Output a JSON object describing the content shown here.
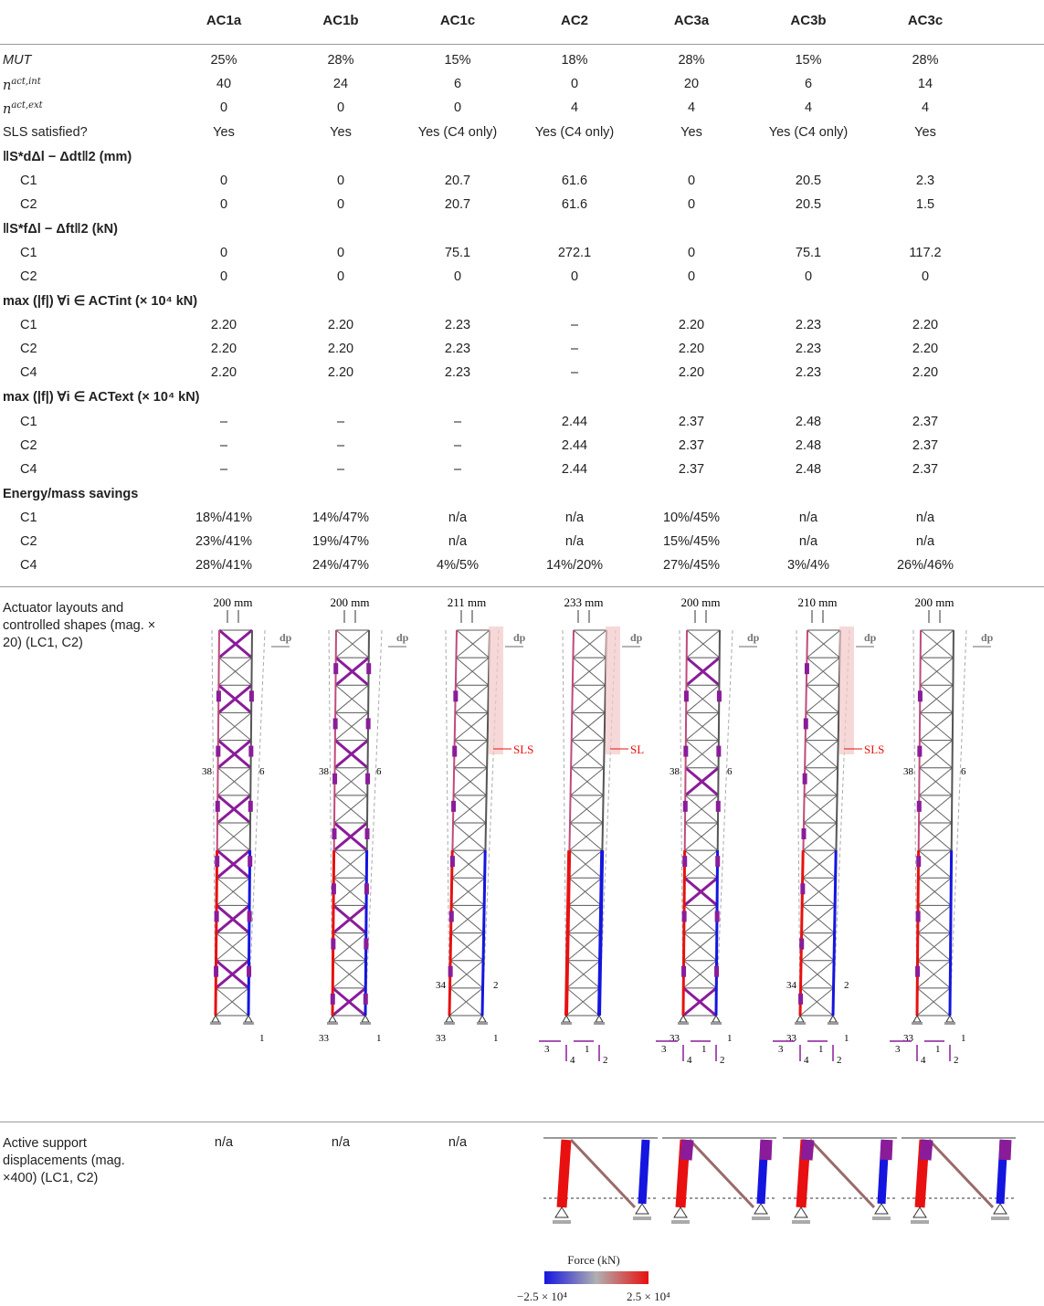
{
  "columns": [
    "AC1a",
    "AC1b",
    "AC1c",
    "AC2",
    "AC3a",
    "AC3b",
    "AC3c"
  ],
  "rows": {
    "mut": {
      "label": "MUT",
      "values": [
        "25%",
        "28%",
        "15%",
        "18%",
        "28%",
        "15%",
        "28%"
      ]
    },
    "nact_int": {
      "label_base": "n",
      "label_sup": "act,int",
      "values": [
        "40",
        "24",
        "6",
        "0",
        "20",
        "6",
        "14"
      ]
    },
    "nact_ext": {
      "label_base": "n",
      "label_sup": "act,ext",
      "values": [
        "0",
        "0",
        "0",
        "4",
        "4",
        "4",
        "4"
      ]
    },
    "sls": {
      "label": "SLS satisfied?",
      "values": [
        "Yes",
        "Yes",
        "Yes (C4 only)",
        "Yes (C4 only)",
        "Yes",
        "Yes (C4 only)",
        "Yes"
      ]
    }
  },
  "sections": {
    "disp_norm": {
      "label": "‖S*dΔl − Δdt‖2 (mm)",
      "rows": [
        {
          "label": "C1",
          "values": [
            "0",
            "0",
            "20.7",
            "61.6",
            "0",
            "20.5",
            "2.3"
          ]
        },
        {
          "label": "C2",
          "values": [
            "0",
            "0",
            "20.7",
            "61.6",
            "0",
            "20.5",
            "1.5"
          ]
        }
      ]
    },
    "force_norm": {
      "label": "‖S*fΔl − Δft‖2 (kN)",
      "rows": [
        {
          "label": "C1",
          "values": [
            "0",
            "0",
            "75.1",
            "272.1",
            "0",
            "75.1",
            "117.2"
          ]
        },
        {
          "label": "C2",
          "values": [
            "0",
            "0",
            "0",
            "0",
            "0",
            "0",
            "0"
          ]
        }
      ]
    },
    "max_int": {
      "label": "max (|f|) ∀i ∈ ACTint (× 10⁴ kN)",
      "rows": [
        {
          "label": "C1",
          "values": [
            "2.20",
            "2.20",
            "2.23",
            "–",
            "2.20",
            "2.23",
            "2.20"
          ]
        },
        {
          "label": "C2",
          "values": [
            "2.20",
            "2.20",
            "2.23",
            "–",
            "2.20",
            "2.23",
            "2.20"
          ]
        },
        {
          "label": "C4",
          "values": [
            "2.20",
            "2.20",
            "2.23",
            "–",
            "2.20",
            "2.23",
            "2.20"
          ]
        }
      ]
    },
    "max_ext": {
      "label": "max (|f|) ∀i ∈ ACText (× 10⁴ kN)",
      "rows": [
        {
          "label": "C1",
          "values": [
            "–",
            "–",
            "–",
            "2.44",
            "2.37",
            "2.48",
            "2.37"
          ]
        },
        {
          "label": "C2",
          "values": [
            "–",
            "–",
            "–",
            "2.44",
            "2.37",
            "2.48",
            "2.37"
          ]
        },
        {
          "label": "C4",
          "values": [
            "–",
            "–",
            "–",
            "2.44",
            "2.37",
            "2.48",
            "2.37"
          ]
        }
      ]
    },
    "energy": {
      "label": "Energy/mass savings",
      "rows": [
        {
          "label": "C1",
          "values": [
            "18%/41%",
            "14%/47%",
            "n/a",
            "n/a",
            "10%/45%",
            "n/a",
            "n/a"
          ]
        },
        {
          "label": "C2",
          "values": [
            "23%/41%",
            "19%/47%",
            "n/a",
            "n/a",
            "15%/45%",
            "n/a",
            "n/a"
          ]
        },
        {
          "label": "C4",
          "values": [
            "28%/41%",
            "24%/47%",
            "4%/5%",
            "14%/20%",
            "27%/45%",
            "3%/4%",
            "26%/46%"
          ]
        }
      ]
    }
  },
  "layouts": {
    "label_line1": "Actuator layouts and",
    "label_line2": "controlled shapes (mag. ×",
    "label_line3": "20) (LC1, C2)",
    "widths": [
      "200 mm",
      "200 mm",
      "211 mm",
      "233 mm",
      "200 mm",
      "210 mm",
      "200 mm"
    ],
    "dp_label": "dp",
    "sls_labels": [
      "",
      "",
      "SLS",
      "SL",
      "",
      "SLS",
      ""
    ],
    "top_nums": [
      "38",
      "38",
      "",
      "",
      "38",
      "",
      "38"
    ],
    "top_right_nums": [
      "6",
      "6",
      "",
      "",
      "6",
      "",
      "6"
    ],
    "mid_nums": [
      "",
      "",
      "34",
      "",
      "",
      "34",
      ""
    ],
    "mid_right_nums": [
      "",
      "",
      "2",
      "",
      "",
      "2",
      ""
    ],
    "bot_nums": [
      "",
      "33",
      "33",
      "",
      "33",
      "33",
      "33"
    ],
    "bot_right_nums": [
      "1",
      "1",
      "1",
      "",
      "1",
      "1",
      "1"
    ],
    "support_nums": [
      "3",
      "4",
      "1",
      "2"
    ]
  },
  "support": {
    "label_line1": "Active support",
    "label_line2": "displacements (mag.",
    "label_line3": "×400) (LC1, C2)",
    "values": [
      "n/a",
      "n/a",
      "n/a"
    ]
  },
  "colorbar": {
    "title": "Force (kN)",
    "min_label": "−2.5 × 10⁴",
    "max_label": "2.5 × 10⁴",
    "colors": {
      "neg": "#1515e0",
      "mid": "#b0b0b0",
      "pos": "#e81010"
    }
  }
}
